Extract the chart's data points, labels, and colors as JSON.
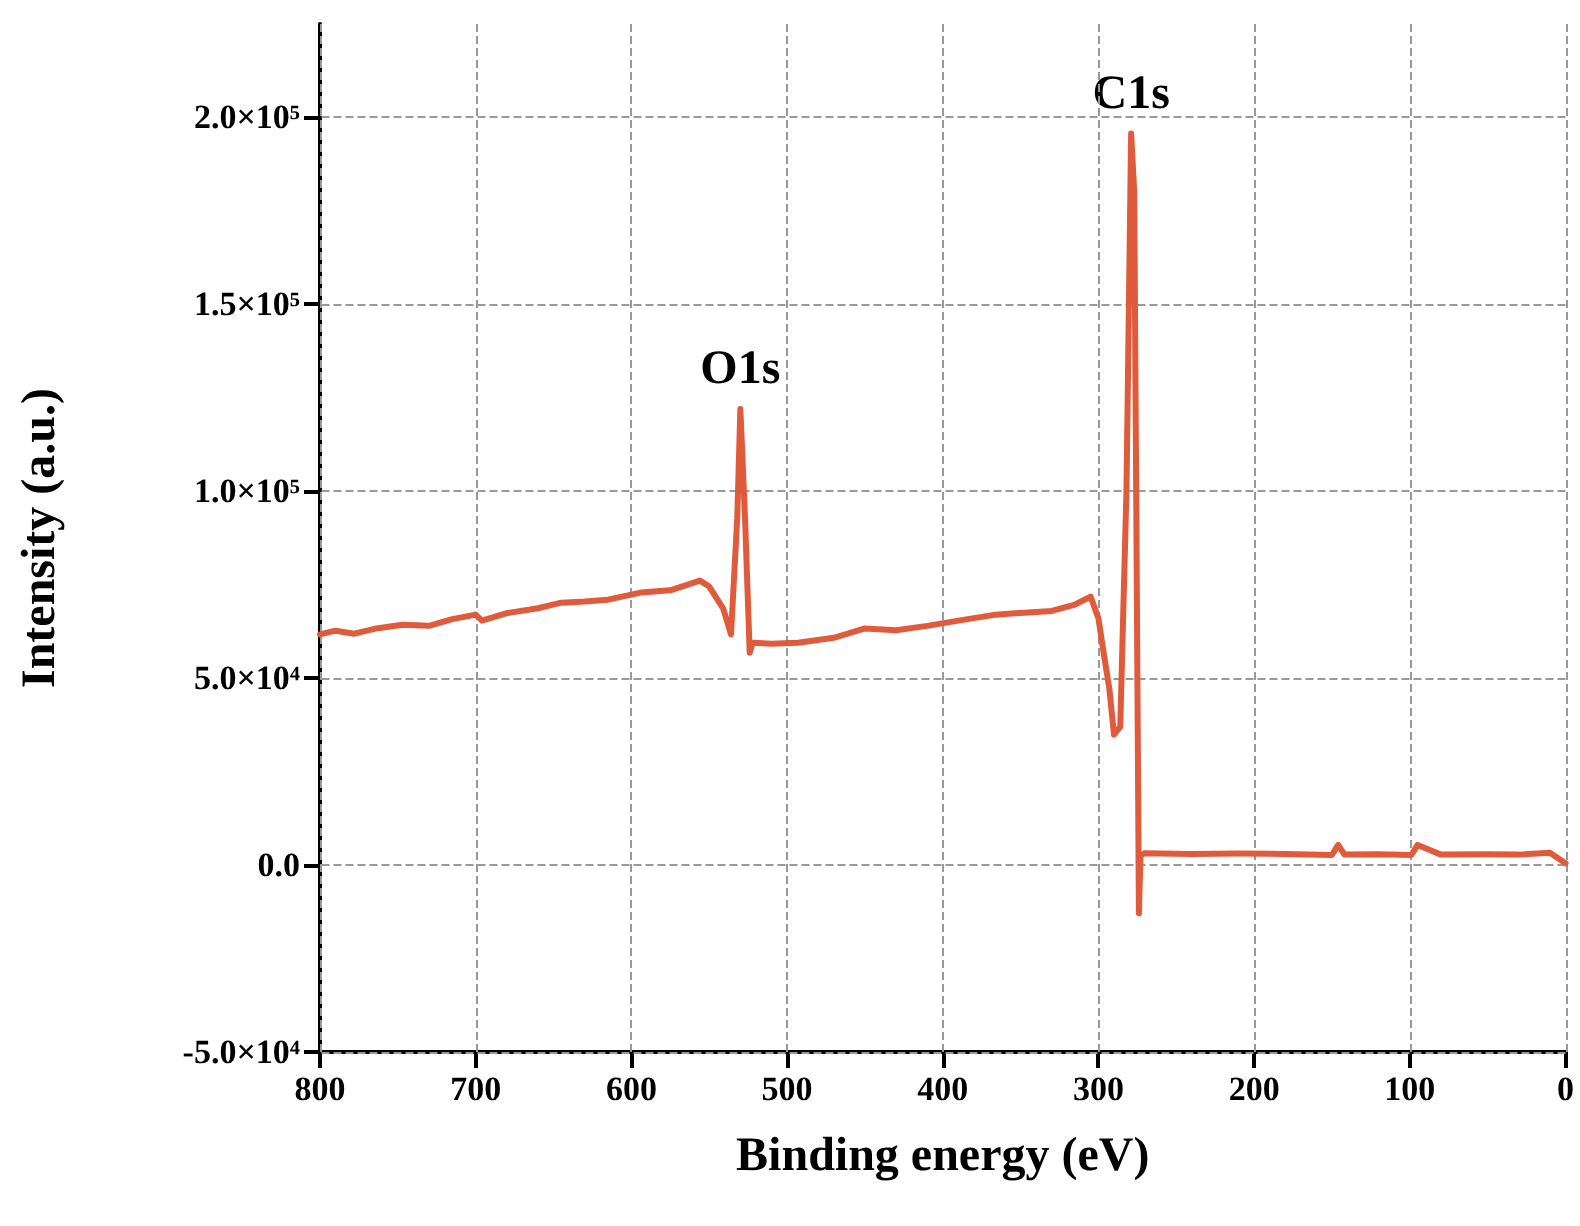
{
  "chart_data": {
    "type": "line",
    "xlabel": "Binding energy (eV)",
    "ylabel": "Intensity (a.u.)",
    "x": [
      800,
      790,
      778,
      765,
      747,
      730,
      715,
      700,
      696,
      680,
      660,
      645,
      630,
      615,
      594,
      575,
      556,
      550,
      541,
      536,
      532,
      530,
      527,
      524,
      522,
      510,
      493,
      470,
      450,
      430,
      410,
      390,
      366,
      345,
      330,
      315,
      305,
      300,
      296,
      293,
      290,
      286,
      282,
      279,
      277,
      274,
      273,
      270,
      240,
      210,
      180,
      150,
      146,
      142,
      120,
      99,
      95,
      80,
      50,
      30,
      10,
      0
    ],
    "series": [
      {
        "color": "#e05a3c",
        "values": [
          61700,
          62700,
          61900,
          63200,
          64300,
          64000,
          65800,
          67000,
          65400,
          67400,
          68700,
          70200,
          70500,
          71000,
          72900,
          73500,
          76100,
          74500,
          68600,
          61700,
          92800,
          122000,
          92800,
          56800,
          59500,
          59200,
          59500,
          60800,
          63300,
          62800,
          64000,
          65400,
          67000,
          67600,
          68000,
          69700,
          71800,
          66000,
          55000,
          47200,
          34900,
          37000,
          100000,
          195700,
          180000,
          -12900,
          2700,
          3200,
          3000,
          3100,
          3000,
          2700,
          5400,
          2800,
          2900,
          2700,
          5400,
          2800,
          2900,
          2800,
          3300,
          500
        ]
      }
    ],
    "annotations": [
      {
        "text": "O1s",
        "x": 530,
        "y": 122000
      },
      {
        "text": "C1s",
        "x": 279,
        "y": 195700
      }
    ],
    "xlim": [
      800,
      0
    ],
    "xticks": [
      800,
      700,
      600,
      500,
      400,
      300,
      200,
      100,
      0
    ],
    "ylim": [
      -50000,
      225000
    ],
    "yticks": [
      {
        "value": -50000,
        "label": "-5.0×10⁴"
      },
      {
        "value": 0,
        "label": "0.0"
      },
      {
        "value": 50000,
        "label": "5.0×10⁴"
      },
      {
        "value": 100000,
        "label": "1.0×10⁵"
      },
      {
        "value": 150000,
        "label": "1.5×10⁵"
      },
      {
        "value": 200000,
        "label": "2.0×10⁵"
      }
    ],
    "grid": true,
    "marker": "none",
    "line_style": "solid"
  }
}
